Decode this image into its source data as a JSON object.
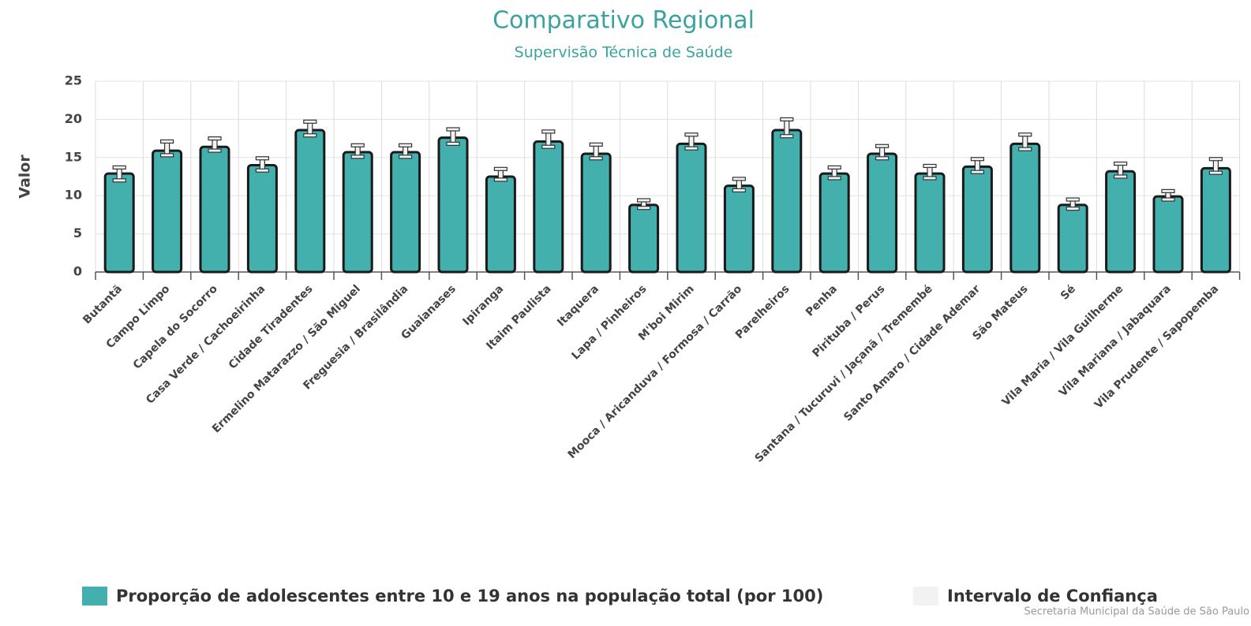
{
  "chart_data": {
    "type": "bar",
    "title": "Comparativo Regional",
    "subtitle": "Supervisão Técnica de Saúde",
    "y_label": "Valor",
    "credit": "Secretaria Municipal da Saúde de São Paulo",
    "categories": [
      "Butantã",
      "Campo Limpo",
      "Capela do Socorro",
      "Casa Verde / Cachoeirinha",
      "Cidade Tiradentes",
      "Ermelino Matarazzo / São Miguel",
      "Freguesia / Brasilândia",
      "Guaianases",
      "Ipiranga",
      "Itaim Paulista",
      "Itaquera",
      "Lapa / Pinheiros",
      "M'boi Mirim",
      "Mooca / Aricanduva / Formosa / Carrão",
      "Parelheiros",
      "Penha",
      "Pirituba / Perus",
      "Santana / Tucuruvi / Jaçanã / Tremembé",
      "Santo Amaro / Cidade Ademar",
      "São Mateus",
      "Sé",
      "Vila Maria / Vila Guilherme",
      "Vila Mariana / Jabaquara",
      "Vila Prudente / Sapopemba"
    ],
    "series": [
      {
        "name": "Proporção de adolescentes entre 10 e 19 anos na população total (por 100)",
        "color": "#44b0ad",
        "values": [
          12.9,
          15.9,
          16.4,
          14.0,
          18.6,
          15.7,
          15.7,
          17.6,
          12.5,
          17.1,
          15.5,
          8.8,
          16.8,
          11.3,
          18.6,
          12.9,
          15.5,
          12.9,
          13.8,
          16.8,
          8.8,
          13.2,
          9.9,
          13.6
        ]
      },
      {
        "name": "Intervalo de Confiança",
        "color": "#f2f2f2",
        "low": [
          12.0,
          15.3,
          15.9,
          13.3,
          17.9,
          15.1,
          15.1,
          16.8,
          12.1,
          16.4,
          14.9,
          8.4,
          16.2,
          10.7,
          17.8,
          12.3,
          14.9,
          12.3,
          13.1,
          16.1,
          8.3,
          12.5,
          9.5,
          13.0
        ],
        "high": [
          13.7,
          17.1,
          17.5,
          14.9,
          19.7,
          16.6,
          16.6,
          18.7,
          13.5,
          18.4,
          16.7,
          9.4,
          18.0,
          12.2,
          20.0,
          13.7,
          16.5,
          13.9,
          14.8,
          18.0,
          9.5,
          14.2,
          10.6,
          14.8
        ]
      }
    ],
    "ylim": [
      0,
      25
    ],
    "yticks": [
      0,
      5,
      10,
      15,
      20,
      25
    ],
    "grid": true
  }
}
